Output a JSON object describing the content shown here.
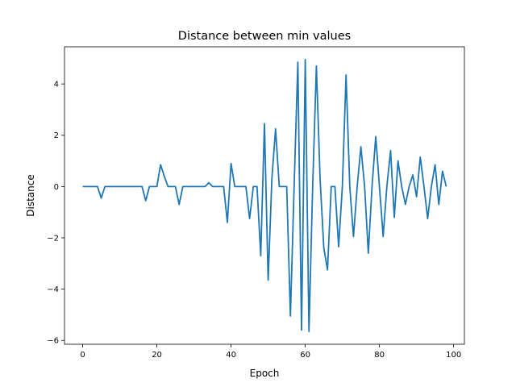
{
  "chart_data": {
    "type": "line",
    "title": "Distance between min values",
    "xlabel": "Epoch",
    "ylabel": "Distance",
    "xlim": [
      -4.9,
      102.9
    ],
    "ylim": [
      -6.15,
      5.45
    ],
    "xticks": [
      0,
      20,
      40,
      60,
      80,
      100
    ],
    "yticks": [
      -6,
      -4,
      -2,
      0,
      2,
      4
    ],
    "grid": false,
    "legend": "none",
    "line_color": "#1f77b4",
    "series": [
      {
        "x": [
          0,
          1,
          2,
          3,
          4,
          5,
          6,
          7,
          8,
          9,
          10,
          11,
          12,
          13,
          14,
          15,
          16,
          17,
          18,
          19,
          20,
          21,
          22,
          23,
          24,
          25,
          26,
          27,
          28,
          29,
          30,
          31,
          32,
          33,
          34,
          35,
          36,
          37,
          38,
          39,
          40,
          41,
          42,
          43,
          44,
          45,
          46,
          47,
          48,
          49,
          50,
          51,
          52,
          53,
          54,
          55,
          56,
          57,
          58,
          59,
          60,
          61,
          62,
          63,
          64,
          65,
          66,
          67,
          68,
          69,
          70,
          71,
          72,
          73,
          74,
          75,
          76,
          77,
          78,
          79,
          80,
          81,
          82,
          83,
          84,
          85,
          86,
          87,
          88,
          89,
          90,
          91,
          92,
          93,
          94,
          95,
          96,
          97,
          98
        ],
        "values": [
          0,
          0,
          0,
          0,
          0,
          -0.45,
          0,
          0,
          0,
          0,
          0,
          0,
          0,
          0,
          0,
          0,
          0,
          -0.55,
          0,
          0,
          0,
          0.85,
          0.4,
          0,
          0,
          0,
          -0.7,
          0,
          0,
          0,
          0,
          0,
          0,
          0,
          0.15,
          0,
          0,
          0,
          0,
          -1.4,
          0.9,
          0,
          0,
          0,
          0,
          -1.25,
          0,
          0,
          -2.7,
          2.45,
          -3.65,
          0.3,
          2.25,
          0,
          0,
          0,
          -5.05,
          0,
          4.85,
          -5.6,
          4.95,
          -5.65,
          0,
          4.7,
          0.3,
          -2.4,
          -3.25,
          0,
          0,
          -2.35,
          0,
          4.35,
          0,
          -1.95,
          0,
          1.55,
          0,
          -2.6,
          0,
          1.95,
          0,
          -1.95,
          0,
          1.4,
          -1.2,
          1.0,
          0,
          -0.7,
          0,
          0.45,
          -0.4,
          1.15,
          0,
          -1.25,
          0,
          0.85,
          -0.7,
          0.6,
          0
        ]
      }
    ]
  }
}
